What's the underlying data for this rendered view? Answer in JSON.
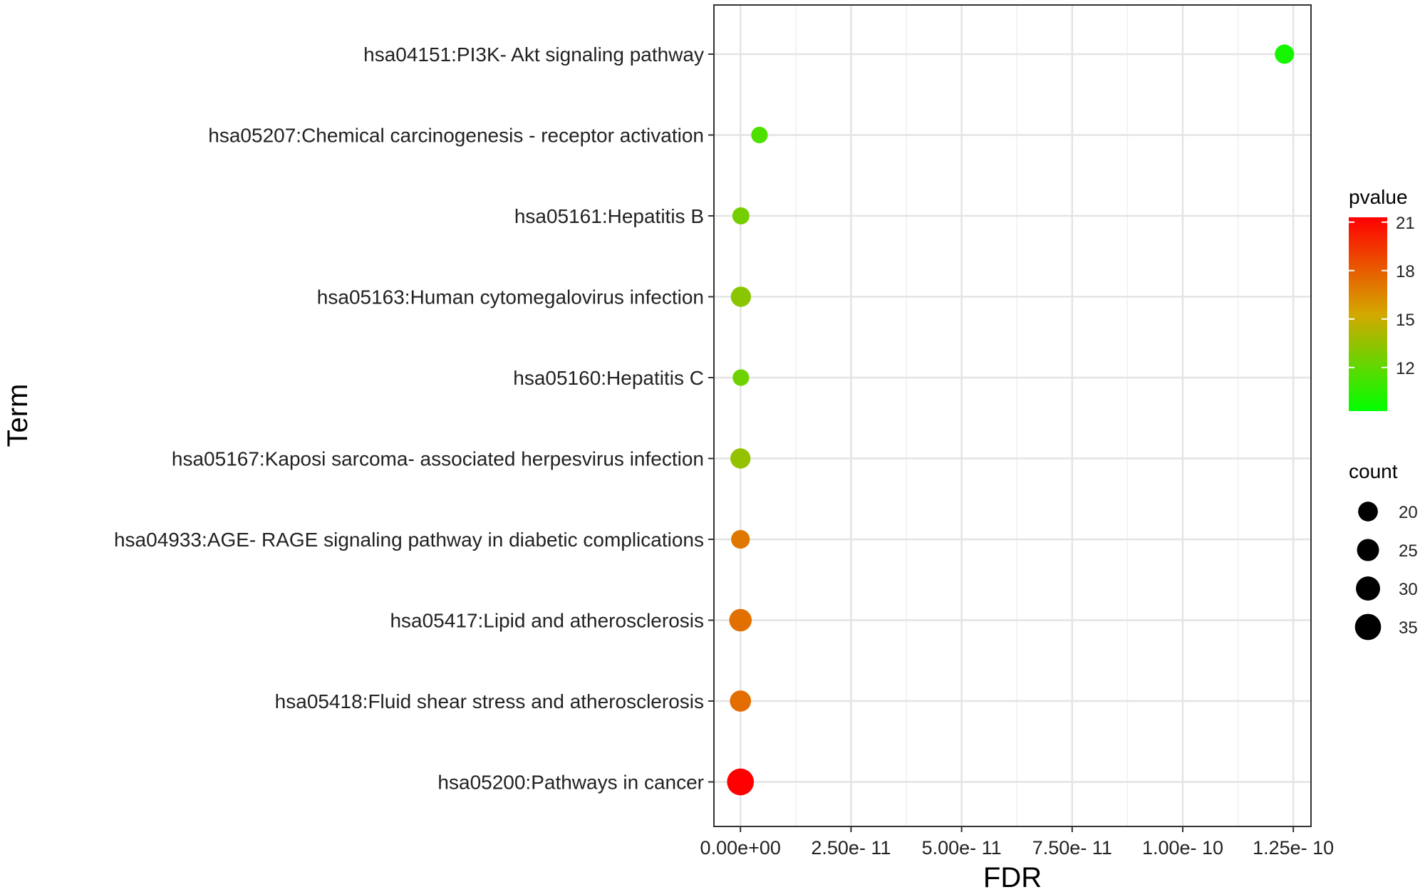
{
  "chart_data": {
    "type": "scatter",
    "xlabel": "FDR",
    "ylabel": "Term",
    "xlim": [
      -6e-12,
      1.29e-10
    ],
    "x_ticks": [
      0,
      2.5e-11,
      5e-11,
      7.5e-11,
      1e-10,
      1.25e-10
    ],
    "x_tick_labels": [
      "0.00e+00",
      "2.50e- 11",
      "5.00e- 11",
      "7.50e- 11",
      "1.00e- 10",
      "1.25e- 10"
    ],
    "grid": true,
    "legend_position": "right",
    "color_legend": {
      "title": "pvalue",
      "min": 9.3,
      "max": 21.3,
      "ticks": [
        12,
        15,
        18,
        21
      ],
      "low_color": "#00ff00",
      "mid_color": "#d4a800",
      "high_color": "#ff0000"
    },
    "size_legend": {
      "title": "count",
      "values": [
        20,
        25,
        30,
        35
      ]
    },
    "points": [
      {
        "term": "hsa04151:PI3K- Akt signaling pathway",
        "fdr": 1.23e-10,
        "pvalue": 9.9,
        "count": 19
      },
      {
        "term": "hsa05207:Chemical carcinogenesis -  receptor activation",
        "fdr": 4.3e-12,
        "pvalue": 11.5,
        "count": 14
      },
      {
        "term": "hsa05161:Hepatitis B",
        "fdr": 1e-13,
        "pvalue": 12.6,
        "count": 15
      },
      {
        "term": "hsa05163:Human cytomegalovirus infection",
        "fdr": 1e-13,
        "pvalue": 13.2,
        "count": 21
      },
      {
        "term": "hsa05160:Hepatitis C",
        "fdr": 1e-13,
        "pvalue": 12.4,
        "count": 14
      },
      {
        "term": "hsa05167:Kaposi sarcoma- associated herpesvirus infection",
        "fdr": 0,
        "pvalue": 13.5,
        "count": 21
      },
      {
        "term": "hsa04933:AGE- RAGE signaling pathway in diabetic complications",
        "fdr": 0,
        "pvalue": 17.0,
        "count": 18
      },
      {
        "term": "hsa05417:Lipid and atherosclerosis",
        "fdr": 0,
        "pvalue": 17.3,
        "count": 26
      },
      {
        "term": "hsa05418:Fluid shear stress and atherosclerosis",
        "fdr": 0,
        "pvalue": 17.4,
        "count": 23
      },
      {
        "term": "hsa05200:Pathways in cancer",
        "fdr": 0,
        "pvalue": 21.3,
        "count": 37
      }
    ]
  }
}
